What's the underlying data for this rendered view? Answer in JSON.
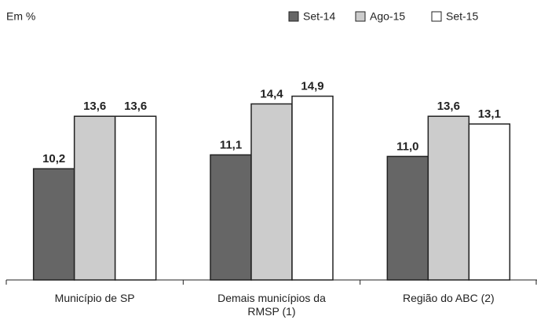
{
  "chart_data": {
    "type": "bar",
    "y_label": "Em %",
    "categories": [
      "Município de SP",
      "Demais municípios da RMSP (1)",
      "Região do ABC (2)"
    ],
    "series": [
      {
        "name": "Set-14",
        "color": "#666666",
        "values": [
          10.2,
          11.1,
          11.0
        ],
        "value_labels": [
          "10,2",
          "11,1",
          "11,0"
        ]
      },
      {
        "name": "Ago-15",
        "color": "#cccccc",
        "values": [
          13.6,
          14.4,
          13.6
        ],
        "value_labels": [
          "13,6",
          "14,4",
          "13,6"
        ]
      },
      {
        "name": "Set-15",
        "color": "#ffffff",
        "values": [
          13.6,
          14.9,
          13.1
        ],
        "value_labels": [
          "13,6",
          "14,9",
          "13,1"
        ]
      }
    ],
    "ylim": [
      3,
      16
    ],
    "legend": "top-right"
  }
}
